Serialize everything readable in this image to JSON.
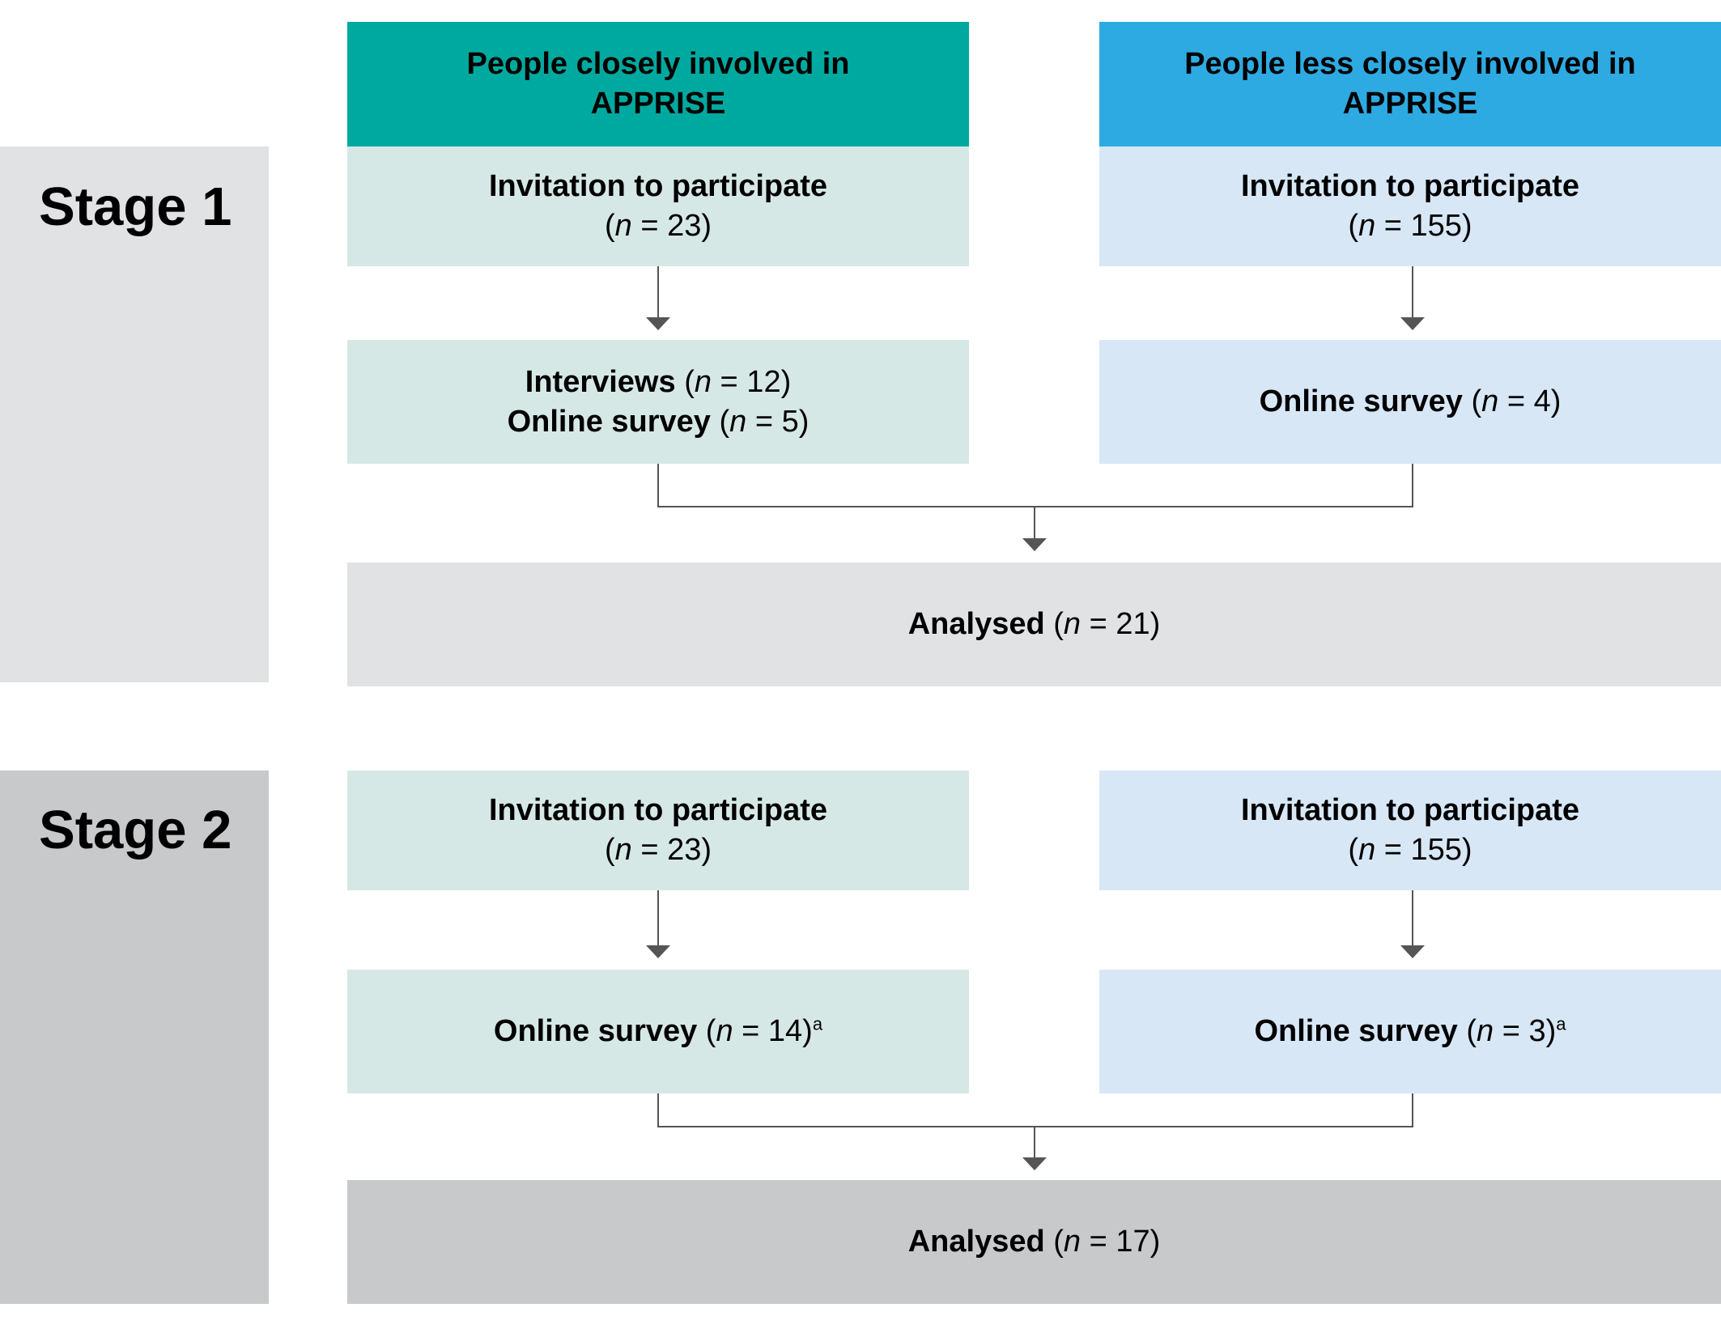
{
  "colors": {
    "header_left": "#00A99F",
    "header_right": "#2DAAE2",
    "box_left": "#D6E8E5",
    "box_right": "#D7E7F6",
    "stage1_panel": "#E1E2E4",
    "stage2_panel": "#C8C9CB",
    "connector": "#555555"
  },
  "headers": {
    "left": {
      "line1": "People closely involved in",
      "line2": "APPRISE"
    },
    "right": {
      "line1": "People less closely involved in",
      "line2": "APPRISE"
    }
  },
  "stage1": {
    "label": "Stage 1",
    "left_invite": {
      "title": "Invitation to participate",
      "n_var": "n",
      "n_eq": " = 23"
    },
    "right_invite": {
      "title": "Invitation to participate",
      "n_var": "n",
      "n_eq": " = 155"
    },
    "left_result": {
      "line1_label": "Interviews",
      "line1_var": "n",
      "line1_eq": " = 12",
      "line2_label": "Online survey",
      "line2_var": "n",
      "line2_eq": " = 5"
    },
    "right_result": {
      "label": "Online survey",
      "n_var": "n",
      "n_eq": " = 4"
    },
    "analysed": {
      "label": "Analysed",
      "n_var": "n",
      "n_eq": " = 21"
    }
  },
  "stage2": {
    "label": "Stage 2",
    "left_invite": {
      "title": "Invitation to participate",
      "n_var": "n",
      "n_eq": " = 23"
    },
    "right_invite": {
      "title": "Invitation to participate",
      "n_var": "n",
      "n_eq": " = 155"
    },
    "left_result": {
      "label": "Online survey",
      "n_var": "n",
      "n_eq": " = 14",
      "footnote": "a"
    },
    "right_result": {
      "label": "Online survey",
      "n_var": "n",
      "n_eq": " = 3",
      "footnote": "a"
    },
    "analysed": {
      "label": "Analysed",
      "n_var": "n",
      "n_eq": " = 17"
    }
  }
}
